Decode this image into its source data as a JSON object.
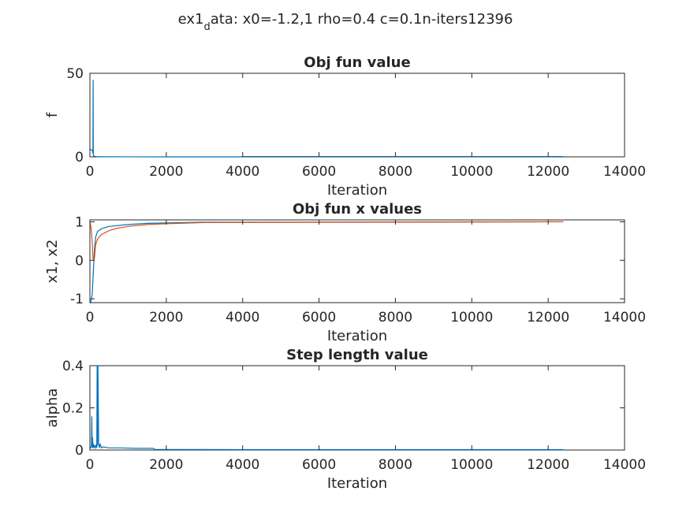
{
  "figure": {
    "suptitle_main": "ex1",
    "suptitle_sub": "d",
    "suptitle_rest": "ata: x0=-1.2,1 rho=0.4 c=0.1n-iters12396"
  },
  "colors": {
    "series1": "#0072BD",
    "series2": "#D95319",
    "axes": "#262626"
  },
  "chart_data": [
    {
      "type": "line",
      "title": "Obj fun value",
      "xlabel": "Iteration",
      "ylabel": "f",
      "xlim": [
        0,
        14000
      ],
      "ylim": [
        0,
        50
      ],
      "xticks": [
        0,
        2000,
        4000,
        6000,
        8000,
        10000,
        12000,
        14000
      ],
      "xtick_labels": [
        "0",
        "2000",
        "4000",
        "6000",
        "8000",
        "10000",
        "12000",
        "14000"
      ],
      "yticks": [
        0,
        50
      ],
      "ytick_labels": [
        "0",
        "50"
      ],
      "series": [
        {
          "color": "#0072BD",
          "x": [
            0,
            20,
            40,
            60,
            70,
            80,
            85,
            90,
            100,
            150,
            200,
            400,
            1000,
            2000,
            3950,
            4000,
            8000,
            12396
          ],
          "y": [
            4.8,
            4.5,
            4.2,
            3.8,
            3.5,
            2,
            46,
            1.2,
            0.5,
            0.2,
            0.1,
            0.05,
            0.02,
            0.01,
            0.01,
            0.2,
            0.2,
            0.2
          ]
        }
      ]
    },
    {
      "type": "line",
      "title": "Obj fun x values",
      "xlabel": "Iteration",
      "ylabel": "x1, x2",
      "xlim": [
        0,
        14000
      ],
      "ylim": [
        -1.1,
        1.05
      ],
      "xticks": [
        0,
        2000,
        4000,
        6000,
        8000,
        10000,
        12000,
        14000
      ],
      "xtick_labels": [
        "0",
        "2000",
        "4000",
        "6000",
        "8000",
        "10000",
        "12000",
        "14000"
      ],
      "yticks": [
        -1,
        0,
        1
      ],
      "ytick_labels": [
        "-1",
        "0",
        "1"
      ],
      "series": [
        {
          "color": "#0072BD",
          "x": [
            0,
            30,
            60,
            80,
            100,
            120,
            150,
            200,
            300,
            500,
            700,
            1000,
            1500,
            2000,
            3000,
            12396
          ],
          "y": [
            -1.2,
            -1.05,
            -0.9,
            -0.5,
            -0.1,
            0.3,
            0.6,
            0.75,
            0.82,
            0.88,
            0.9,
            0.93,
            0.96,
            0.97,
            0.99,
            1.0
          ]
        },
        {
          "color": "#D95319",
          "x": [
            0,
            30,
            60,
            80,
            100,
            120,
            150,
            200,
            300,
            500,
            700,
            1000,
            1500,
            2000,
            3000,
            12396
          ],
          "y": [
            1.0,
            0.85,
            0.5,
            0.05,
            0.0,
            0.05,
            0.4,
            0.55,
            0.67,
            0.77,
            0.83,
            0.88,
            0.93,
            0.95,
            0.98,
            1.0
          ]
        }
      ]
    },
    {
      "type": "line",
      "title": "Step length value",
      "xlabel": "Iteration",
      "ylabel": "alpha",
      "xlim": [
        0,
        14000
      ],
      "ylim": [
        0,
        0.4
      ],
      "xticks": [
        0,
        2000,
        4000,
        6000,
        8000,
        10000,
        12000,
        14000
      ],
      "xtick_labels": [
        "0",
        "2000",
        "4000",
        "6000",
        "8000",
        "10000",
        "12000",
        "14000"
      ],
      "yticks": [
        0,
        0.2,
        0.4
      ],
      "ytick_labels": [
        "0",
        "0.2",
        "0.4"
      ],
      "series": [
        {
          "color": "#0072BD",
          "x": [
            0,
            40,
            50,
            60,
            70,
            80,
            90,
            100,
            120,
            140,
            160,
            180,
            190,
            200,
            210,
            230,
            250,
            270,
            300,
            350,
            500,
            800,
            1200,
            1650,
            1700,
            4000,
            8000,
            12396
          ],
          "y": [
            0.005,
            0.02,
            0.16,
            0.01,
            0.06,
            0.01,
            0.03,
            0.01,
            0.02,
            0.01,
            0.025,
            0.01,
            0.4,
            0.02,
            0.4,
            0.03,
            0.01,
            0.03,
            0.01,
            0.015,
            0.01,
            0.01,
            0.008,
            0.008,
            0.003,
            0.002,
            0.002,
            0.002
          ]
        }
      ]
    }
  ]
}
